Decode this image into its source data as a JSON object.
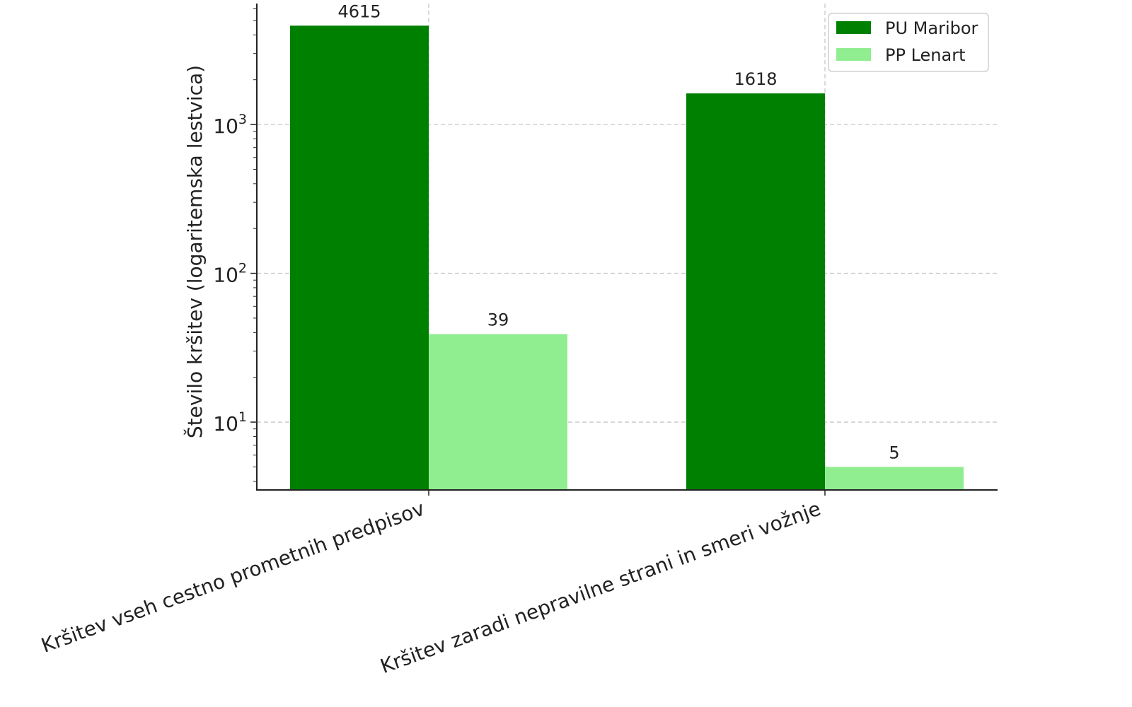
{
  "chart_data": {
    "type": "bar",
    "title": "",
    "xlabel": "",
    "ylabel": "Število kršitev (logaritemska lestvica)",
    "yscale": "log",
    "ylim": [
      3.5,
      6500
    ],
    "grid": true,
    "legend_position": "top-right",
    "categories": [
      "Kršitev vseh cestno prometnih predpisov",
      "Kršitev zaradi nepravilne strani in smeri vožnje"
    ],
    "series": [
      {
        "name": "PU Maribor",
        "color": "#008000",
        "values": [
          4615,
          1618
        ]
      },
      {
        "name": "PP Lenart",
        "color": "#90ee90",
        "values": [
          39,
          5
        ]
      }
    ],
    "y_ticks": [
      {
        "value": 10,
        "base": "10",
        "exp": "1"
      },
      {
        "value": 100,
        "base": "10",
        "exp": "2"
      },
      {
        "value": 1000,
        "base": "10",
        "exp": "3"
      }
    ]
  }
}
